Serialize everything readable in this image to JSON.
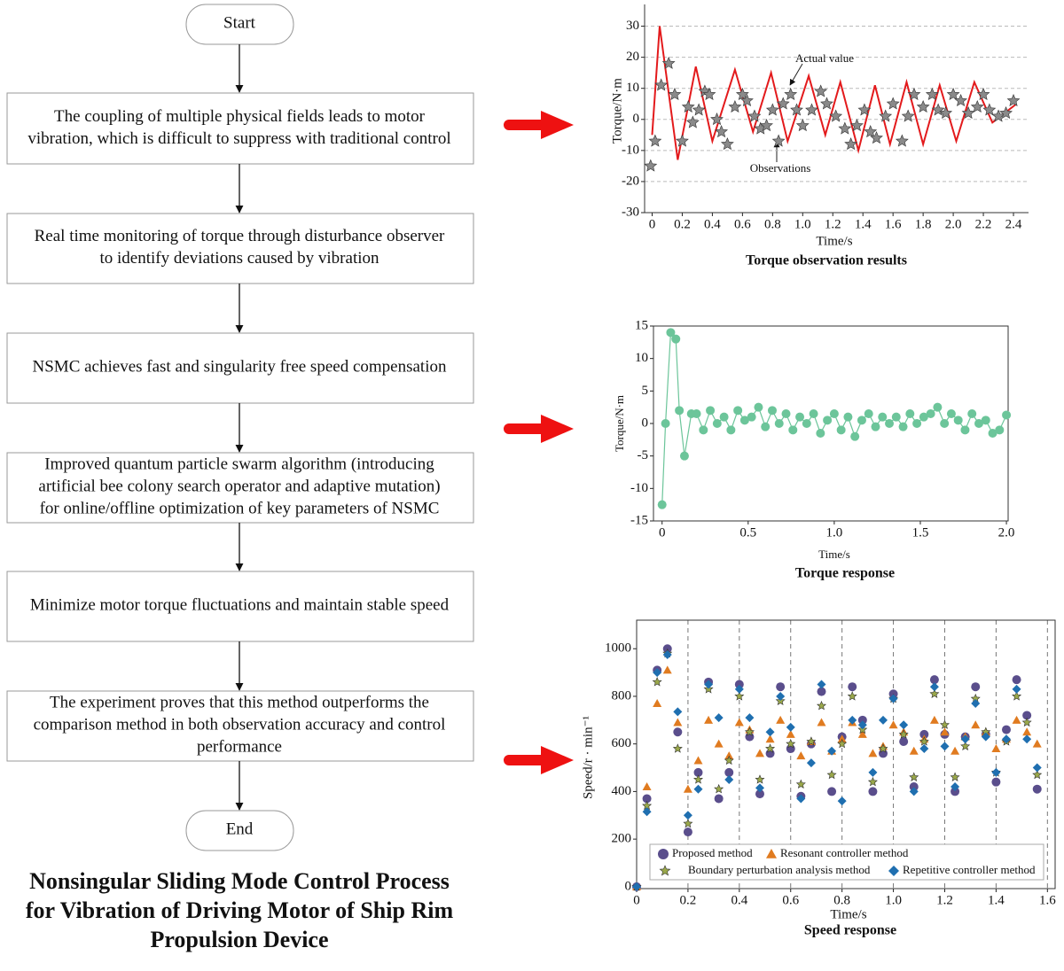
{
  "flowchart": {
    "nodes": [
      {
        "lines": [
          "Start"
        ]
      },
      {
        "lines": [
          "The coupling of multiple physical fields leads to motor",
          "vibration, which is difficult to suppress with traditional control"
        ]
      },
      {
        "lines": [
          "Real time monitoring of torque through disturbance observer",
          "to identify deviations caused by vibration"
        ]
      },
      {
        "lines": [
          "NSMC achieves fast and singularity free speed compensation"
        ]
      },
      {
        "lines": [
          "Improved quantum particle swarm algorithm (introducing",
          "artificial bee colony search operator and adaptive mutation)",
          "for online/offline optimization of key parameters of NSMC"
        ]
      },
      {
        "lines": [
          "Minimize motor torque fluctuations and maintain stable speed"
        ]
      },
      {
        "lines": [
          "The experiment proves that this method outperforms the",
          "comparison method in both observation accuracy and control",
          "performance"
        ]
      },
      {
        "lines": [
          "End"
        ]
      }
    ],
    "title_lines": [
      "Nonsingular Sliding Mode Control Process",
      "for Vibration of Driving Motor of Ship Rim",
      "Propulsion Device"
    ]
  },
  "chart_data": [
    {
      "type": "line",
      "title": "Torque observation results",
      "xlabel": "Time/s",
      "ylabel": "Torque/N·m",
      "xlim": [
        -0.05,
        2.5
      ],
      "ylim": [
        -30,
        37
      ],
      "xticks": [
        0,
        0.2,
        0.4,
        0.6,
        0.8,
        {
          "value": 1.0,
          "label": "1.0"
        },
        1.2,
        1.4,
        1.6,
        1.8,
        {
          "value": 2.0,
          "label": "2.0"
        },
        2.2,
        2.4
      ],
      "yticks": [
        -30,
        -20,
        -10,
        0,
        10,
        20,
        30
      ],
      "grid": "horizontal",
      "annotations": [
        "Actual value",
        "Observations"
      ],
      "series": [
        {
          "style": "line",
          "color": "#e31a1c",
          "x": [
            0,
            0.05,
            0.17,
            0.29,
            0.4,
            0.55,
            0.67,
            0.79,
            0.9,
            1.04,
            1.15,
            1.25,
            1.37,
            1.48,
            1.58,
            1.69,
            1.8,
            1.91,
            2.02,
            2.14,
            2.26,
            2.42
          ],
          "values": [
            -5,
            30,
            -13,
            17,
            -7,
            16,
            -4,
            15,
            -7,
            14,
            -5,
            12,
            -10,
            11,
            -8,
            12,
            -8,
            11,
            -7,
            12,
            -1,
            5
          ]
        },
        {
          "style": "markers",
          "marker": "star",
          "color": "#8a8a8a",
          "x": [
            -0.01,
            0.02,
            0.06,
            0.11,
            0.15,
            0.2,
            0.24,
            0.27,
            0.31,
            0.35,
            0.38,
            0.43,
            0.46,
            0.5,
            0.55,
            0.6,
            0.63,
            0.68,
            0.72,
            0.76,
            0.8,
            0.84,
            0.87,
            0.92,
            0.96,
            1.0,
            1.06,
            1.12,
            1.16,
            1.22,
            1.28,
            1.32,
            1.36,
            1.41,
            1.45,
            1.49,
            1.55,
            1.6,
            1.66,
            1.7,
            1.74,
            1.8,
            1.86,
            1.9,
            1.95,
            2.0,
            2.05,
            2.1,
            2.16,
            2.2,
            2.24,
            2.3,
            2.35,
            2.4
          ],
          "values": [
            -15,
            -7,
            11,
            18,
            8,
            -7,
            4,
            -1,
            3,
            9,
            8,
            0,
            -4,
            -8,
            4,
            8,
            6,
            1,
            -3,
            -2,
            3,
            -7,
            5,
            8,
            3,
            -2,
            3,
            9,
            5,
            1,
            -3,
            -8,
            -2,
            3,
            -4,
            -6,
            1,
            5,
            -7,
            1,
            8,
            4,
            8,
            3,
            2,
            8,
            6,
            2,
            4,
            8,
            3,
            1,
            2,
            6
          ]
        }
      ]
    },
    {
      "type": "line",
      "title": "Torque response",
      "xlabel": "Time/s",
      "ylabel": "Torque/N·m",
      "xlim": [
        -0.05,
        2.01
      ],
      "ylim": [
        -15,
        15
      ],
      "xticks": [
        0,
        0.5,
        {
          "value": 1.0,
          "label": "1.0"
        },
        1.5,
        {
          "value": 2.0,
          "label": "2.0"
        }
      ],
      "yticks": [
        -15,
        -10,
        -5,
        0,
        5,
        10,
        15
      ],
      "grid": false,
      "series": [
        {
          "style": "line",
          "marker": "circle",
          "color": "#6cc59a",
          "x": [
            0,
            0.02,
            0.05,
            0.08,
            0.1,
            0.13,
            0.17,
            0.2,
            0.24,
            0.28,
            0.32,
            0.36,
            0.4,
            0.44,
            0.48,
            0.52,
            0.56,
            0.6,
            0.64,
            0.68,
            0.72,
            0.76,
            0.8,
            0.84,
            0.88,
            0.92,
            0.96,
            1.0,
            1.04,
            1.08,
            1.12,
            1.16,
            1.2,
            1.24,
            1.28,
            1.32,
            1.36,
            1.4,
            1.44,
            1.48,
            1.52,
            1.56,
            1.6,
            1.64,
            1.68,
            1.72,
            1.76,
            1.8,
            1.84,
            1.88,
            1.92,
            1.96,
            2.0
          ],
          "values": [
            -12.5,
            0,
            14,
            13,
            2,
            -5,
            1.5,
            1.5,
            -1,
            2,
            0,
            1,
            -1,
            2,
            0.5,
            1,
            2.5,
            -0.5,
            2,
            0,
            1.5,
            -1,
            1,
            0,
            1.5,
            -1.5,
            0.5,
            1.5,
            -1,
            1,
            -2,
            0.5,
            1.5,
            -0.5,
            1,
            0,
            1,
            -0.5,
            1.5,
            0,
            1,
            1.5,
            2.5,
            0,
            1.5,
            0.5,
            -1,
            1.5,
            0,
            0.5,
            -1.5,
            -1,
            1.3
          ]
        }
      ]
    },
    {
      "type": "scatter",
      "title": "Speed response",
      "xlabel": "Time/s",
      "ylabel": "Speed/r · min⁻¹",
      "xlim": [
        0,
        1.63
      ],
      "ylim": [
        -8,
        1120
      ],
      "xticks": [
        0,
        0.2,
        0.4,
        0.6,
        0.8,
        {
          "value": 1.0,
          "label": "1.0"
        },
        1.2,
        1.4,
        1.6
      ],
      "yticks": [
        0,
        200,
        400,
        600,
        800,
        1000
      ],
      "grid": "vertical",
      "legend": "bottom",
      "x": [
        0,
        0.04,
        0.08,
        0.12,
        0.16,
        0.2,
        0.24,
        0.28,
        0.32,
        0.36,
        0.4,
        0.44,
        0.48,
        0.52,
        0.56,
        0.6,
        0.64,
        0.68,
        0.72,
        0.76,
        0.8,
        0.84,
        0.88,
        0.92,
        0.96,
        1.0,
        1.04,
        1.08,
        1.12,
        1.16,
        1.2,
        1.24,
        1.28,
        1.32,
        1.36,
        1.4,
        1.44,
        1.48,
        1.52,
        1.56
      ],
      "series": [
        {
          "name": "Proposed method",
          "marker": "circle",
          "color": "#5a4e8c",
          "values": [
            0,
            370,
            910,
            1000,
            650,
            230,
            480,
            860,
            370,
            480,
            850,
            630,
            390,
            560,
            840,
            580,
            380,
            600,
            820,
            400,
            630,
            840,
            700,
            400,
            560,
            810,
            610,
            420,
            640,
            870,
            640,
            400,
            630,
            840,
            640,
            440,
            660,
            870,
            720,
            410
          ]
        },
        {
          "name": "Resonant controller method",
          "marker": "triangle",
          "color": "#e07b20",
          "values": [
            0,
            420,
            770,
            910,
            690,
            410,
            530,
            700,
            600,
            550,
            690,
            660,
            560,
            620,
            700,
            640,
            550,
            610,
            690,
            570,
            620,
            690,
            640,
            560,
            590,
            680,
            650,
            570,
            620,
            700,
            650,
            570,
            630,
            680,
            650,
            580,
            620,
            700,
            650,
            600
          ]
        },
        {
          "name": "Boundary perturbation analysis method",
          "marker": "star",
          "color": "#9aa84a",
          "values": [
            0,
            340,
            860,
            980,
            580,
            265,
            450,
            830,
            410,
            530,
            800,
            650,
            450,
            580,
            780,
            600,
            430,
            610,
            760,
            470,
            600,
            800,
            660,
            440,
            580,
            790,
            640,
            460,
            610,
            810,
            680,
            460,
            590,
            790,
            650,
            480,
            610,
            800,
            690,
            470
          ]
        },
        {
          "name": "Repetitive controller method",
          "marker": "diamond",
          "color": "#1f6fb0",
          "values": [
            0,
            315,
            900,
            975,
            735,
            300,
            410,
            850,
            710,
            450,
            830,
            710,
            415,
            650,
            800,
            670,
            370,
            520,
            850,
            570,
            360,
            700,
            680,
            480,
            700,
            790,
            680,
            400,
            580,
            840,
            590,
            420,
            620,
            770,
            630,
            480,
            620,
            830,
            620,
            500
          ]
        }
      ]
    }
  ]
}
